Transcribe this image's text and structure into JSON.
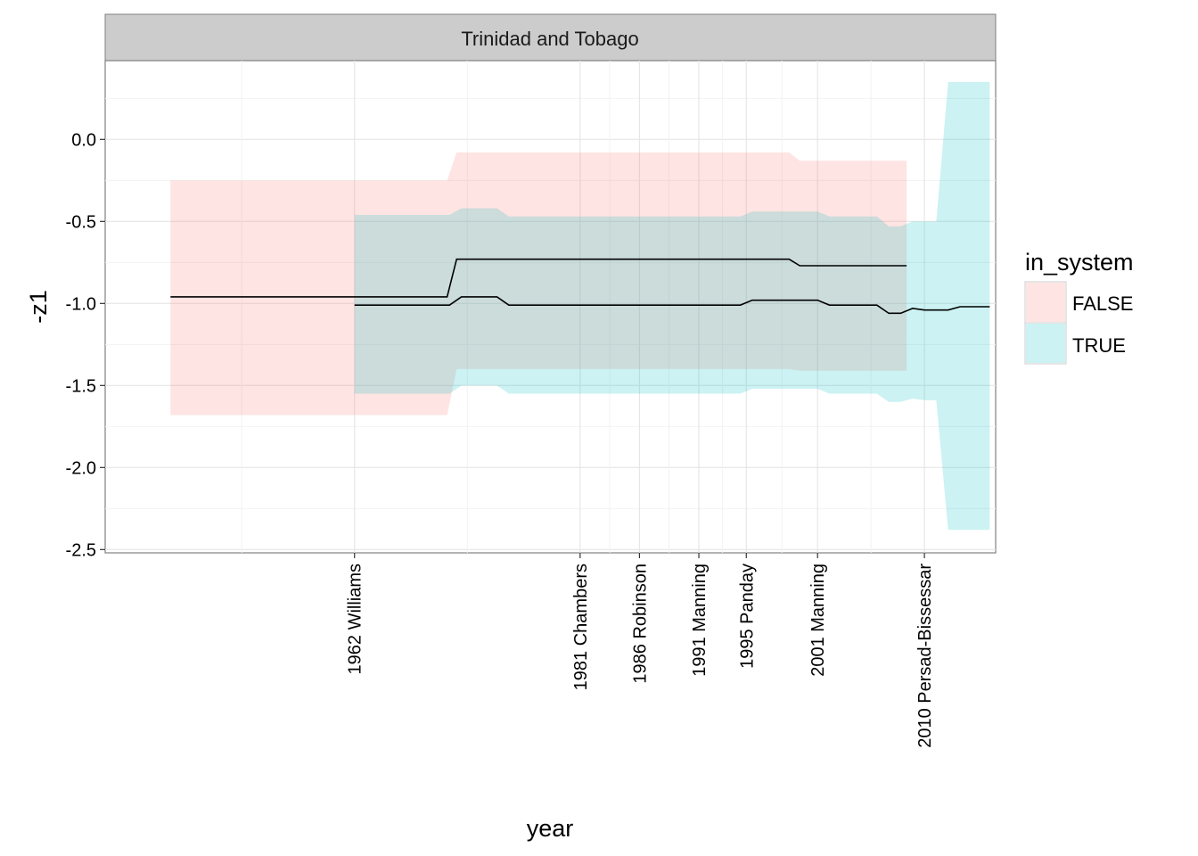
{
  "chart_data": {
    "type": "area",
    "facet_title": "Trinidad and Tobago",
    "xlabel": "year",
    "ylabel": "-z1",
    "xlim": [
      1941,
      2016
    ],
    "ylim": [
      -2.52,
      0.48
    ],
    "y_ticks": [
      0.0,
      -0.5,
      -1.0,
      -1.5,
      -2.0,
      -2.5
    ],
    "y_tick_labels": [
      "0.0",
      "-0.5",
      "-1.0",
      "-1.5",
      "-2.0",
      "-2.5"
    ],
    "x_ticks": [
      {
        "year": 1962,
        "label": "1962 Williams"
      },
      {
        "year": 1981,
        "label": "1981 Chambers"
      },
      {
        "year": 1986,
        "label": "1986 Robinson"
      },
      {
        "year": 1991,
        "label": "1991 Manning"
      },
      {
        "year": 1995,
        "label": "1995 Panday"
      },
      {
        "year": 2001,
        "label": "2001 Manning"
      },
      {
        "year": 2010,
        "label": "2010 Persad-Bissessar"
      }
    ],
    "grid": true,
    "legend": {
      "title": "in_system",
      "position": "right",
      "entries": [
        {
          "label": "FALSE",
          "color": "#F8766D"
        },
        {
          "label": "TRUE",
          "color": "#00BFC4"
        }
      ]
    },
    "series": [
      {
        "name": "FALSE",
        "color": "#F8766D",
        "x": [
          1946.5,
          1969.8,
          1970.6,
          1998.6,
          1999.5,
          2008.5
        ],
        "y": [
          -0.96,
          -0.96,
          -0.73,
          -0.73,
          -0.77,
          -0.77
        ],
        "lower": [
          -1.68,
          -1.68,
          -1.4,
          -1.4,
          -1.41,
          -1.41
        ],
        "upper": [
          -0.25,
          -0.25,
          -0.08,
          -0.08,
          -0.13,
          -0.13
        ]
      },
      {
        "name": "TRUE",
        "color": "#00BFC4",
        "x": [
          1962.0,
          1970.0,
          1971.0,
          1974.0,
          1975.0,
          1994.5,
          1995.5,
          2001.0,
          2002.0,
          2006.0,
          2007.0,
          2008.0,
          2009.0,
          2010.0,
          2011.0,
          2012.0,
          2013.0,
          2014.0,
          2015.5
        ],
        "y": [
          -1.01,
          -1.01,
          -0.96,
          -0.96,
          -1.01,
          -1.01,
          -0.98,
          -0.98,
          -1.01,
          -1.01,
          -1.06,
          -1.06,
          -1.03,
          -1.04,
          -1.04,
          -1.04,
          -1.02,
          -1.02,
          -1.02
        ],
        "lower": [
          -1.55,
          -1.55,
          -1.5,
          -1.5,
          -1.55,
          -1.55,
          -1.52,
          -1.52,
          -1.55,
          -1.55,
          -1.6,
          -1.6,
          -1.58,
          -1.59,
          -1.59,
          -2.38,
          -2.38,
          -2.38,
          -2.38
        ],
        "upper": [
          -0.46,
          -0.46,
          -0.42,
          -0.42,
          -0.47,
          -0.47,
          -0.44,
          -0.44,
          -0.47,
          -0.47,
          -0.53,
          -0.53,
          -0.5,
          -0.5,
          -0.5,
          0.35,
          0.35,
          0.35,
          0.35
        ]
      }
    ]
  }
}
